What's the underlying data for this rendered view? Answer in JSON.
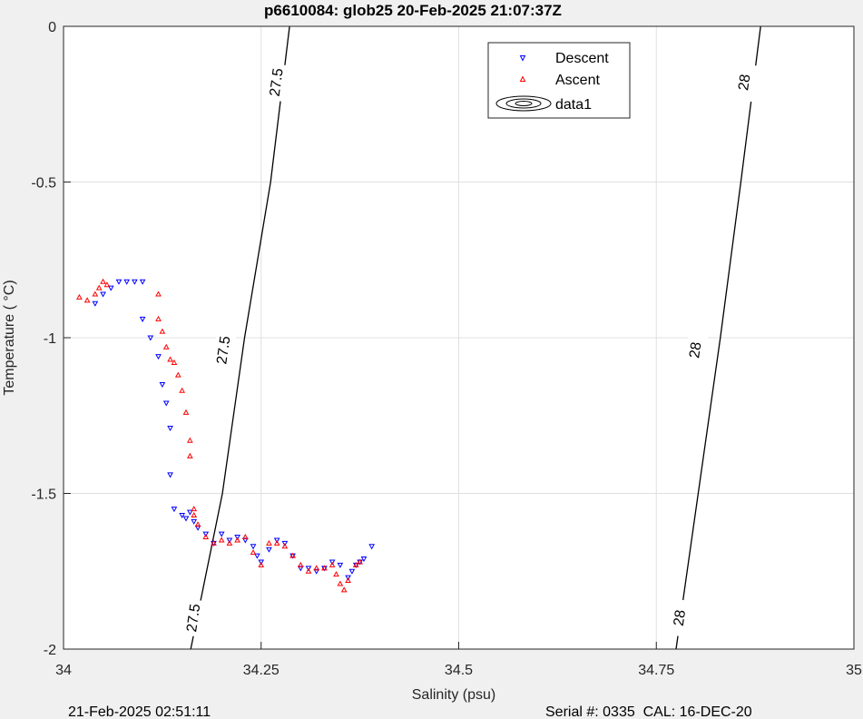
{
  "chart_data": {
    "type": "scatter",
    "title": "p6610084: glob25 20-Feb-2025 21:07:37Z",
    "xlabel": "Salinity (psu)",
    "ylabel": "Temperature (   °C)",
    "xlim": [
      34,
      35
    ],
    "ylim": [
      -2,
      0
    ],
    "xticks": [
      34,
      34.25,
      34.5,
      34.75,
      35
    ],
    "xtick_labels": [
      "34",
      "34.25",
      "34.5",
      "34.75",
      "35"
    ],
    "yticks": [
      0,
      -0.5,
      -1,
      -1.5,
      -2
    ],
    "ytick_labels": [
      "0",
      "-0.5",
      "-1",
      "-1.5",
      "-2"
    ],
    "grid": true,
    "legend_location": "top-right",
    "legend": [
      "Descent",
      "Ascent",
      "data1"
    ],
    "colors": {
      "descent": "#0000ff",
      "ascent": "#ff0000",
      "contour": "#000000",
      "grid": "#e0e0e0",
      "background": "#f0f0f0"
    },
    "contours": [
      {
        "label": "27.5",
        "points": [
          [
            34.161,
            -2
          ],
          [
            34.201,
            -1.5
          ],
          [
            34.229,
            -1
          ],
          [
            34.262,
            -0.5
          ],
          [
            34.286,
            0
          ]
        ],
        "label_positions": [
          [
            34.165,
            -1.9
          ],
          [
            34.203,
            -1.04
          ],
          [
            34.27,
            -0.18
          ]
        ]
      },
      {
        "label": "28",
        "points": [
          [
            34.775,
            -2
          ],
          [
            34.803,
            -1.5
          ],
          [
            34.831,
            -1
          ],
          [
            34.857,
            -0.5
          ],
          [
            34.882,
            0
          ]
        ],
        "label_positions": [
          [
            34.78,
            -1.9
          ],
          [
            34.8,
            -1.04
          ],
          [
            34.862,
            -0.18
          ]
        ]
      }
    ],
    "series": [
      {
        "name": "Descent",
        "marker": "triangle-down",
        "points": [
          [
            34.04,
            -0.89
          ],
          [
            34.05,
            -0.86
          ],
          [
            34.06,
            -0.84
          ],
          [
            34.07,
            -0.82
          ],
          [
            34.08,
            -0.82
          ],
          [
            34.09,
            -0.82
          ],
          [
            34.1,
            -0.82
          ],
          [
            34.1,
            -0.94
          ],
          [
            34.11,
            -1.0
          ],
          [
            34.12,
            -1.06
          ],
          [
            34.125,
            -1.15
          ],
          [
            34.13,
            -1.21
          ],
          [
            34.135,
            -1.29
          ],
          [
            34.135,
            -1.44
          ],
          [
            34.14,
            -1.55
          ],
          [
            34.15,
            -1.57
          ],
          [
            34.155,
            -1.58
          ],
          [
            34.16,
            -1.56
          ],
          [
            34.165,
            -1.59
          ],
          [
            34.17,
            -1.61
          ],
          [
            34.18,
            -1.63
          ],
          [
            34.19,
            -1.66
          ],
          [
            34.2,
            -1.63
          ],
          [
            34.21,
            -1.65
          ],
          [
            34.22,
            -1.64
          ],
          [
            34.23,
            -1.65
          ],
          [
            34.24,
            -1.67
          ],
          [
            34.245,
            -1.7
          ],
          [
            34.25,
            -1.72
          ],
          [
            34.26,
            -1.68
          ],
          [
            34.27,
            -1.65
          ],
          [
            34.28,
            -1.66
          ],
          [
            34.29,
            -1.7
          ],
          [
            34.3,
            -1.74
          ],
          [
            34.31,
            -1.74
          ],
          [
            34.32,
            -1.75
          ],
          [
            34.33,
            -1.74
          ],
          [
            34.34,
            -1.72
          ],
          [
            34.35,
            -1.73
          ],
          [
            34.36,
            -1.77
          ],
          [
            34.365,
            -1.75
          ],
          [
            34.37,
            -1.73
          ],
          [
            34.375,
            -1.72
          ],
          [
            34.38,
            -1.71
          ],
          [
            34.39,
            -1.67
          ]
        ]
      },
      {
        "name": "Ascent",
        "marker": "triangle-up",
        "points": [
          [
            34.02,
            -0.87
          ],
          [
            34.03,
            -0.88
          ],
          [
            34.04,
            -0.86
          ],
          [
            34.045,
            -0.84
          ],
          [
            34.05,
            -0.82
          ],
          [
            34.055,
            -0.83
          ],
          [
            34.12,
            -0.86
          ],
          [
            34.12,
            -0.94
          ],
          [
            34.125,
            -0.98
          ],
          [
            34.13,
            -1.03
          ],
          [
            34.135,
            -1.07
          ],
          [
            34.14,
            -1.08
          ],
          [
            34.145,
            -1.12
          ],
          [
            34.15,
            -1.17
          ],
          [
            34.155,
            -1.24
          ],
          [
            34.16,
            -1.33
          ],
          [
            34.16,
            -1.38
          ],
          [
            34.165,
            -1.55
          ],
          [
            34.165,
            -1.57
          ],
          [
            34.17,
            -1.6
          ],
          [
            34.18,
            -1.64
          ],
          [
            34.19,
            -1.66
          ],
          [
            34.2,
            -1.65
          ],
          [
            34.21,
            -1.66
          ],
          [
            34.22,
            -1.65
          ],
          [
            34.23,
            -1.64
          ],
          [
            34.24,
            -1.69
          ],
          [
            34.25,
            -1.73
          ],
          [
            34.26,
            -1.66
          ],
          [
            34.27,
            -1.66
          ],
          [
            34.28,
            -1.67
          ],
          [
            34.29,
            -1.7
          ],
          [
            34.3,
            -1.73
          ],
          [
            34.31,
            -1.75
          ],
          [
            34.32,
            -1.74
          ],
          [
            34.33,
            -1.74
          ],
          [
            34.34,
            -1.73
          ],
          [
            34.345,
            -1.76
          ],
          [
            34.35,
            -1.79
          ],
          [
            34.355,
            -1.81
          ],
          [
            34.36,
            -1.78
          ],
          [
            34.37,
            -1.73
          ],
          [
            34.375,
            -1.72
          ]
        ]
      }
    ]
  },
  "footer": {
    "left": "21-Feb-2025 02:51:11",
    "right": "Serial #: 0335  CAL: 16-DEC-20"
  }
}
